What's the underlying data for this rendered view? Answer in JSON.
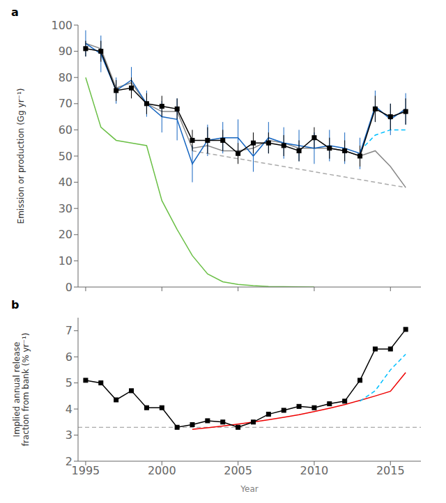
{
  "chart_data": [
    {
      "type": "line",
      "title": "a",
      "y_label": "Emission or production (Gg yr⁻¹)",
      "xlim": [
        1994.5,
        2017.0
      ],
      "xticks": [
        1995,
        2000,
        2005,
        2010,
        2015
      ],
      "ylim": [
        0,
        100
      ],
      "yticks": [
        0,
        10,
        20,
        30,
        40,
        50,
        60,
        70,
        80,
        90,
        100
      ],
      "grid": false,
      "tick_labels": "y",
      "series": [
        {
          "color": "#6abf45",
          "line_style": "solid",
          "marker": "none",
          "x": [
            1995,
            1996,
            1997,
            1998,
            1999,
            2000,
            2001,
            2002,
            2003,
            2004,
            2005,
            2006,
            2007,
            2008,
            2009,
            2010
          ],
          "values": [
            80,
            61,
            56,
            55,
            54,
            33,
            22,
            12,
            5,
            2,
            1,
            0.5,
            0.2,
            0.1,
            0.05,
            0.0
          ]
        },
        {
          "color": "#aaaaaa",
          "line_style": "dashed",
          "marker": "none",
          "x": [
            2002,
            2003,
            2004,
            2005,
            2006,
            2007,
            2008,
            2009,
            2010,
            2011,
            2012,
            2013,
            2014,
            2015,
            2016
          ],
          "values": [
            52,
            51,
            50,
            49,
            48,
            47,
            46,
            45,
            44,
            43,
            42,
            41,
            40,
            39,
            38
          ]
        },
        {
          "color": "#888888",
          "line_style": "solid",
          "marker": "none",
          "x": [
            1995,
            1996,
            1997,
            1998,
            1999,
            2000,
            2001,
            2002,
            2003,
            2004,
            2005,
            2006,
            2007,
            2008,
            2009,
            2010,
            2011,
            2012,
            2013,
            2014,
            2015,
            2016
          ],
          "values": [
            93,
            91,
            76,
            78,
            70,
            67,
            67,
            53,
            54,
            52,
            52,
            53,
            56,
            55,
            53,
            53,
            53,
            52,
            50,
            52,
            46,
            38
          ]
        },
        {
          "color": "#00BFFF",
          "line_style": "dashed",
          "marker": "none",
          "x": [
            2013,
            2014,
            2015,
            2016
          ],
          "values": [
            52,
            58,
            60,
            60
          ]
        },
        {
          "color": "#1565C0",
          "line_style": "solid",
          "marker": "none",
          "x": [
            1995,
            1996,
            1997,
            1998,
            1999,
            2000,
            2001,
            2002,
            2003,
            2004,
            2005,
            2006,
            2007,
            2008,
            2009,
            2010,
            2011,
            2012,
            2013,
            2014,
            2015,
            2016
          ],
          "values": [
            93,
            89,
            75,
            79,
            70,
            65,
            64,
            47,
            56,
            57,
            57,
            50,
            57,
            55,
            54,
            53,
            54,
            53,
            51,
            69,
            64,
            68
          ],
          "error_low": [
            5,
            7,
            5,
            5,
            5,
            6,
            8,
            7,
            6,
            6,
            7,
            6,
            6,
            6,
            6,
            6,
            6,
            6,
            6,
            6,
            6,
            6
          ],
          "error_high": [
            5,
            7,
            5,
            5,
            5,
            6,
            8,
            7,
            6,
            6,
            7,
            6,
            6,
            6,
            6,
            6,
            6,
            6,
            6,
            6,
            6,
            6
          ]
        },
        {
          "color": "#000000",
          "line_style": "solid",
          "marker": "square",
          "x": [
            1995,
            1996,
            1997,
            1998,
            1999,
            2000,
            2001,
            2002,
            2003,
            2004,
            2005,
            2006,
            2007,
            2008,
            2009,
            2010,
            2011,
            2012,
            2013,
            2014,
            2015,
            2016
          ],
          "values": [
            91,
            90,
            75,
            76,
            70,
            69,
            68,
            56,
            56,
            56,
            51,
            55,
            55,
            54,
            52,
            57,
            53,
            52,
            50,
            68,
            65,
            67
          ],
          "error_low": [
            3,
            4,
            4,
            4,
            4,
            4,
            4,
            4,
            5,
            4,
            4,
            4,
            4,
            4,
            4,
            4,
            4,
            4,
            4,
            5,
            5,
            5
          ],
          "error_high": [
            3,
            4,
            4,
            4,
            4,
            4,
            4,
            4,
            5,
            4,
            4,
            4,
            4,
            4,
            4,
            4,
            4,
            4,
            4,
            5,
            5,
            5
          ]
        }
      ]
    },
    {
      "type": "line",
      "title": "b",
      "x_label": "Year",
      "y_label": "Implied annual release\nfraction from bank (% yr⁻¹)",
      "xlim": [
        1994.5,
        2017.0
      ],
      "xticks": [
        1995,
        2000,
        2005,
        2010,
        2015
      ],
      "ylim": [
        2,
        7.5
      ],
      "yticks": [
        2,
        3,
        4,
        5,
        6,
        7
      ],
      "grid": false,
      "series": [
        {
          "type": "hline",
          "color": "#aaaaaa",
          "line_style": "dashed",
          "values": [
            3.3
          ]
        },
        {
          "color": "#EE0000",
          "line_style": "solid",
          "marker": "none",
          "x": [
            2002,
            2003,
            2004,
            2005,
            2006,
            2007,
            2008,
            2009,
            2010,
            2011,
            2012,
            2013,
            2014,
            2015,
            2016
          ],
          "values": [
            3.22,
            3.28,
            3.35,
            3.42,
            3.5,
            3.59,
            3.68,
            3.78,
            3.9,
            4.03,
            4.17,
            4.33,
            4.5,
            4.68,
            5.4
          ]
        },
        {
          "color": "#00BFFF",
          "line_style": "dashed",
          "marker": "none",
          "x": [
            2013,
            2014,
            2015,
            2016
          ],
          "values": [
            4.3,
            4.7,
            5.5,
            6.1
          ]
        },
        {
          "color": "#000000",
          "line_style": "solid",
          "marker": "square",
          "x": [
            1995,
            1996,
            1997,
            1998,
            1999,
            2000,
            2001,
            2002,
            2003,
            2004,
            2005,
            2006,
            2007,
            2008,
            2009,
            2010,
            2011,
            2012,
            2013,
            2014,
            2015,
            2016
          ],
          "values": [
            5.1,
            5.0,
            4.35,
            4.7,
            4.05,
            4.05,
            3.3,
            3.4,
            3.55,
            3.5,
            3.3,
            3.5,
            3.8,
            3.95,
            4.1,
            4.05,
            4.2,
            4.3,
            5.1,
            6.3,
            6.3,
            7.05
          ]
        }
      ]
    }
  ]
}
